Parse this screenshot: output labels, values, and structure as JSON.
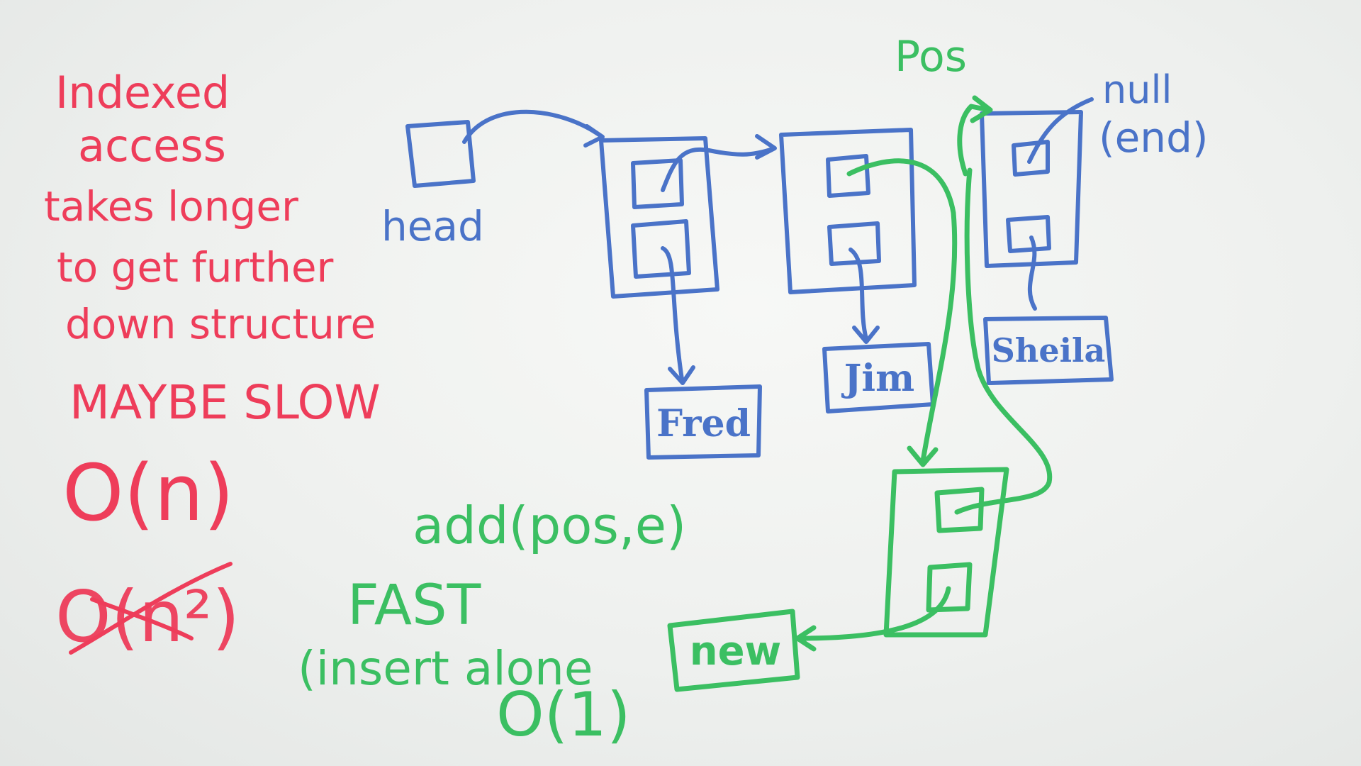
{
  "notes": {
    "line1": "Indexed",
    "line2": "access",
    "line3": "takes longer",
    "line4": "to get further",
    "line5": "down structure",
    "slow": "MAYBE SLOW",
    "big_o_n": "O(n)",
    "big_o_n2": "O(n²)"
  },
  "diagram": {
    "head_label": "head",
    "pos_label": "Pos",
    "null_label": "null",
    "end_label": "(end)",
    "nodes": [
      "Fred",
      "Jim",
      "Sheila"
    ],
    "new_node": "new"
  },
  "insert": {
    "call": "add(pos,e)",
    "fast": "FAST",
    "insert_alone": "(insert alone",
    "big_o_1": "O(1)"
  },
  "colors": {
    "red": "#ee3d5a",
    "blue": "#4a73c8",
    "green": "#3bbf62",
    "board": "#f0f2f0"
  }
}
